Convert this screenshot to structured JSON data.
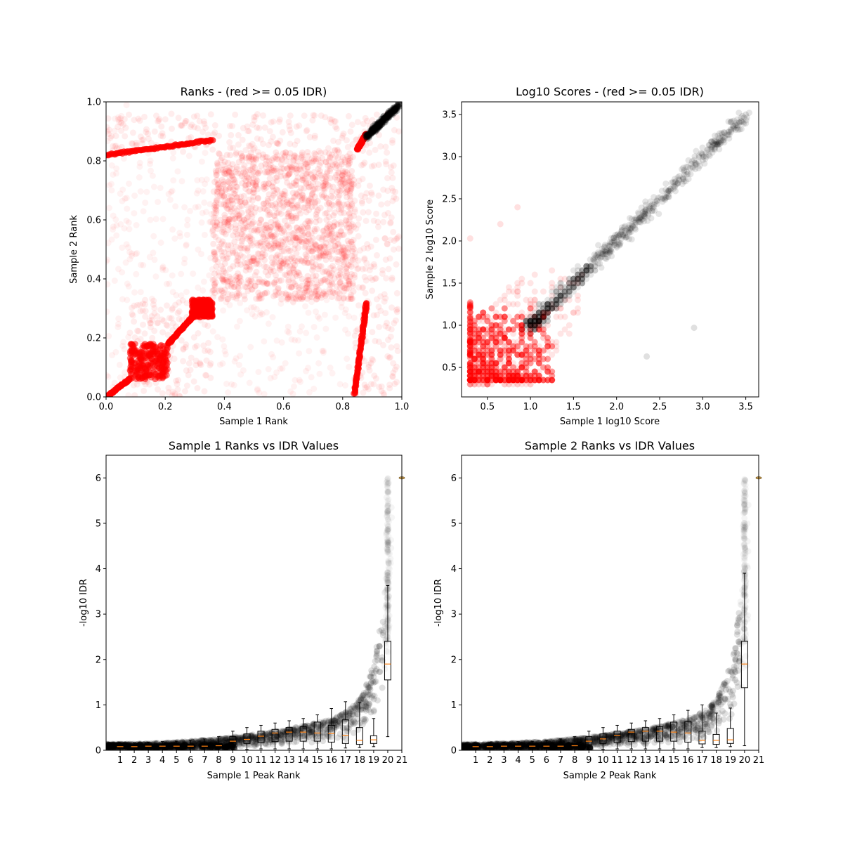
{
  "chart_data": [
    {
      "id": "ranks",
      "type": "scatter",
      "title": "Ranks - (red >= 0.05 IDR)",
      "xlabel": "Sample 1 Rank",
      "ylabel": "Sample 2 Rank",
      "xlim": [
        0,
        1
      ],
      "ylim": [
        0,
        1
      ],
      "xticks": [
        "0.0",
        "0.2",
        "0.4",
        "0.6",
        "0.8",
        "1.0"
      ],
      "yticks": [
        "0.0",
        "0.2",
        "0.4",
        "0.6",
        "0.8",
        "1.0"
      ],
      "grid": false,
      "colors": {
        "fail": "#ff0000",
        "pass": "#000000"
      },
      "regions": [
        {
          "x": [
            0.36,
            0.84
          ],
          "y": [
            0.33,
            0.83
          ],
          "density": "high"
        },
        {
          "x": [
            0.08,
            0.36
          ],
          "y": [
            0.0,
            0.33
          ],
          "density": "medium"
        },
        {
          "x": [
            0.36,
            0.84
          ],
          "y": [
            0.0,
            0.33
          ],
          "density": "low"
        },
        {
          "x": [
            0.08,
            0.36
          ],
          "y": [
            0.33,
            0.83
          ],
          "density": "low"
        },
        {
          "x": [
            0.0,
            0.84
          ],
          "y": [
            0.83,
            0.96
          ],
          "density": "medium"
        },
        {
          "x": [
            0.84,
            0.99
          ],
          "y": [
            0.0,
            0.96
          ],
          "density": "medium"
        },
        {
          "x": [
            0.0,
            0.08
          ],
          "y": [
            0.0,
            1.0
          ],
          "density": "low"
        }
      ],
      "dense_clusters": [
        {
          "x": [
            0.08,
            0.21
          ],
          "y": [
            0.06,
            0.18
          ]
        },
        {
          "x": [
            0.29,
            0.36
          ],
          "y": [
            0.27,
            0.33
          ]
        }
      ],
      "bands": [
        {
          "from": [
            0.0,
            0.82
          ],
          "to": [
            0.36,
            0.87
          ]
        },
        {
          "from": [
            0.21,
            0.18
          ],
          "to": [
            0.3,
            0.28
          ]
        },
        {
          "from": [
            0.0,
            0.0
          ],
          "to": [
            0.08,
            0.06
          ]
        },
        {
          "from": [
            0.84,
            0.01
          ],
          "to": [
            0.88,
            0.32
          ]
        },
        {
          "from": [
            0.85,
            0.84
          ],
          "to": [
            0.88,
            0.89
          ]
        }
      ],
      "passing_cluster": {
        "x": [
          0.88,
          1.0
        ],
        "y": [
          0.88,
          1.0
        ]
      }
    },
    {
      "id": "scores",
      "type": "scatter",
      "title": "Log10 Scores - (red >= 0.05 IDR)",
      "xlabel": "Sample 1 log10 Score",
      "ylabel": "Sample 2 log10 Score",
      "xlim": [
        0.2,
        3.65
      ],
      "ylim": [
        0.15,
        3.65
      ],
      "xticks": [
        "0.5",
        "1.0",
        "1.5",
        "2.0",
        "2.5",
        "3.0",
        "3.5"
      ],
      "yticks": [
        "0.5",
        "1.0",
        "1.5",
        "2.0",
        "2.5",
        "3.0",
        "3.5"
      ],
      "grid": false,
      "colors": {
        "fail": "#ff0000",
        "pass": "#000000"
      },
      "fail_region": {
        "x": [
          0.3,
          1.6
        ],
        "y": [
          0.3,
          1.65
        ]
      },
      "pass_trend": {
        "x": [
          1.0,
          3.5
        ],
        "y": [
          1.0,
          3.5
        ]
      },
      "outliers": [
        {
          "x": 0.3,
          "y": 2.03,
          "group": "fail"
        },
        {
          "x": 0.65,
          "y": 2.2,
          "group": "fail"
        },
        {
          "x": 0.85,
          "y": 2.4,
          "group": "fail"
        },
        {
          "x": 2.9,
          "y": 0.97,
          "group": "pass"
        },
        {
          "x": 2.35,
          "y": 0.63,
          "group": "pass"
        },
        {
          "x": 3.5,
          "y": 3.5,
          "group": "pass"
        }
      ]
    },
    {
      "id": "s1idr",
      "type": "scatter",
      "title": "Sample 1 Ranks vs IDR Values",
      "xlabel": "Sample 1 Peak Rank",
      "ylabel": "-log10 IDR",
      "xlim": [
        0,
        21
      ],
      "ylim": [
        0,
        6.5
      ],
      "xticks": [
        "1",
        "2",
        "3",
        "4",
        "5",
        "6",
        "7",
        "8",
        "9",
        "10",
        "11",
        "12",
        "13",
        "14",
        "15",
        "16",
        "17",
        "18",
        "19",
        "20",
        "21"
      ],
      "yticks": [
        "0",
        "1",
        "2",
        "3",
        "4",
        "5",
        "6"
      ],
      "grid": false,
      "colors": {
        "points": "#000000",
        "median": "#ff7f0e"
      },
      "boxes": [
        {
          "pos": 1,
          "whislo": 0.0,
          "q1": 0.05,
          "med": 0.08,
          "q3": 0.12,
          "whishi": 0.16
        },
        {
          "pos": 2,
          "whislo": 0.0,
          "q1": 0.05,
          "med": 0.08,
          "q3": 0.12,
          "whishi": 0.17
        },
        {
          "pos": 3,
          "whislo": 0.0,
          "q1": 0.05,
          "med": 0.09,
          "q3": 0.12,
          "whishi": 0.18
        },
        {
          "pos": 4,
          "whislo": 0.0,
          "q1": 0.06,
          "med": 0.09,
          "q3": 0.13,
          "whishi": 0.19
        },
        {
          "pos": 5,
          "whislo": 0.0,
          "q1": 0.06,
          "med": 0.09,
          "q3": 0.13,
          "whishi": 0.2
        },
        {
          "pos": 6,
          "whislo": 0.0,
          "q1": 0.06,
          "med": 0.09,
          "q3": 0.13,
          "whishi": 0.22
        },
        {
          "pos": 7,
          "whislo": 0.0,
          "q1": 0.06,
          "med": 0.09,
          "q3": 0.14,
          "whishi": 0.25
        },
        {
          "pos": 8,
          "whislo": 0.0,
          "q1": 0.06,
          "med": 0.1,
          "q3": 0.15,
          "whishi": 0.3
        },
        {
          "pos": 9,
          "whislo": 0.02,
          "q1": 0.12,
          "med": 0.2,
          "q3": 0.3,
          "whishi": 0.42
        },
        {
          "pos": 10,
          "whislo": 0.02,
          "q1": 0.15,
          "med": 0.24,
          "q3": 0.36,
          "whishi": 0.5
        },
        {
          "pos": 11,
          "whislo": 0.03,
          "q1": 0.17,
          "med": 0.31,
          "q3": 0.42,
          "whishi": 0.55
        },
        {
          "pos": 12,
          "whislo": 0.03,
          "q1": 0.19,
          "med": 0.38,
          "q3": 0.46,
          "whishi": 0.6
        },
        {
          "pos": 13,
          "whislo": 0.03,
          "q1": 0.2,
          "med": 0.4,
          "q3": 0.5,
          "whishi": 0.65
        },
        {
          "pos": 14,
          "whislo": 0.03,
          "q1": 0.2,
          "med": 0.4,
          "q3": 0.52,
          "whishi": 0.7
        },
        {
          "pos": 15,
          "whislo": 0.03,
          "q1": 0.2,
          "med": 0.38,
          "q3": 0.62,
          "whishi": 0.78
        },
        {
          "pos": 16,
          "whislo": 0.03,
          "q1": 0.18,
          "med": 0.37,
          "q3": 0.55,
          "whishi": 0.92
        },
        {
          "pos": 17,
          "whislo": 0.05,
          "q1": 0.15,
          "med": 0.33,
          "q3": 0.67,
          "whishi": 1.07
        },
        {
          "pos": 18,
          "whislo": 0.06,
          "q1": 0.13,
          "med": 0.22,
          "q3": 0.5,
          "whishi": 1.05
        },
        {
          "pos": 19,
          "whislo": 0.08,
          "q1": 0.15,
          "med": 0.23,
          "q3": 0.32,
          "whishi": 0.7
        },
        {
          "pos": 20,
          "whislo": 0.3,
          "q1": 1.55,
          "med": 1.9,
          "q3": 2.4,
          "whishi": 3.63
        }
      ],
      "flier": {
        "x": 21,
        "y": 6.0
      }
    },
    {
      "id": "s2idr",
      "type": "scatter",
      "title": "Sample 2 Ranks vs IDR Values",
      "xlabel": "Sample 2 Peak Rank",
      "ylabel": "-log10 IDR",
      "xlim": [
        0,
        21
      ],
      "ylim": [
        0,
        6.5
      ],
      "xticks": [
        "1",
        "2",
        "3",
        "4",
        "5",
        "6",
        "7",
        "8",
        "9",
        "10",
        "11",
        "12",
        "13",
        "14",
        "15",
        "16",
        "17",
        "18",
        "19",
        "20",
        "21"
      ],
      "yticks": [
        "0",
        "1",
        "2",
        "3",
        "4",
        "5",
        "6"
      ],
      "grid": false,
      "colors": {
        "points": "#000000",
        "median": "#ff7f0e"
      },
      "boxes": [
        {
          "pos": 1,
          "whislo": 0.0,
          "q1": 0.05,
          "med": 0.08,
          "q3": 0.12,
          "whishi": 0.16
        },
        {
          "pos": 2,
          "whislo": 0.0,
          "q1": 0.05,
          "med": 0.08,
          "q3": 0.12,
          "whishi": 0.17
        },
        {
          "pos": 3,
          "whislo": 0.0,
          "q1": 0.05,
          "med": 0.09,
          "q3": 0.12,
          "whishi": 0.18
        },
        {
          "pos": 4,
          "whislo": 0.0,
          "q1": 0.06,
          "med": 0.09,
          "q3": 0.13,
          "whishi": 0.19
        },
        {
          "pos": 5,
          "whislo": 0.0,
          "q1": 0.06,
          "med": 0.09,
          "q3": 0.13,
          "whishi": 0.2
        },
        {
          "pos": 6,
          "whislo": 0.0,
          "q1": 0.06,
          "med": 0.09,
          "q3": 0.13,
          "whishi": 0.22
        },
        {
          "pos": 7,
          "whislo": 0.0,
          "q1": 0.06,
          "med": 0.09,
          "q3": 0.14,
          "whishi": 0.25
        },
        {
          "pos": 8,
          "whislo": 0.0,
          "q1": 0.06,
          "med": 0.1,
          "q3": 0.15,
          "whishi": 0.3
        },
        {
          "pos": 9,
          "whislo": 0.02,
          "q1": 0.12,
          "med": 0.2,
          "q3": 0.3,
          "whishi": 0.42
        },
        {
          "pos": 10,
          "whislo": 0.02,
          "q1": 0.15,
          "med": 0.25,
          "q3": 0.36,
          "whishi": 0.5
        },
        {
          "pos": 11,
          "whislo": 0.03,
          "q1": 0.17,
          "med": 0.33,
          "q3": 0.42,
          "whishi": 0.55
        },
        {
          "pos": 12,
          "whislo": 0.03,
          "q1": 0.19,
          "med": 0.4,
          "q3": 0.46,
          "whishi": 0.6
        },
        {
          "pos": 13,
          "whislo": 0.03,
          "q1": 0.2,
          "med": 0.42,
          "q3": 0.5,
          "whishi": 0.65
        },
        {
          "pos": 14,
          "whislo": 0.03,
          "q1": 0.2,
          "med": 0.42,
          "q3": 0.52,
          "whishi": 0.7
        },
        {
          "pos": 15,
          "whislo": 0.03,
          "q1": 0.2,
          "med": 0.4,
          "q3": 0.62,
          "whishi": 0.78
        },
        {
          "pos": 16,
          "whislo": 0.03,
          "q1": 0.18,
          "med": 0.38,
          "q3": 0.63,
          "whishi": 0.88
        },
        {
          "pos": 17,
          "whislo": 0.06,
          "q1": 0.14,
          "med": 0.22,
          "q3": 0.42,
          "whishi": 1.0
        },
        {
          "pos": 18,
          "whislo": 0.06,
          "q1": 0.13,
          "med": 0.22,
          "q3": 0.35,
          "whishi": 0.82
        },
        {
          "pos": 19,
          "whislo": 0.08,
          "q1": 0.15,
          "med": 0.23,
          "q3": 0.48,
          "whishi": 0.93
        },
        {
          "pos": 20,
          "whislo": 0.1,
          "q1": 1.38,
          "med": 1.9,
          "q3": 2.4,
          "whishi": 3.9
        }
      ],
      "flier": {
        "x": 21,
        "y": 6.0
      }
    }
  ]
}
